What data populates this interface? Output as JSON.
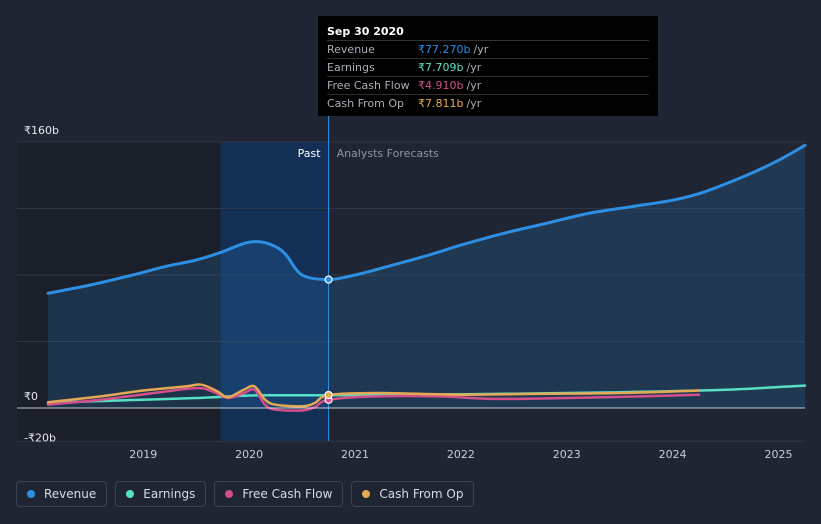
{
  "chart_data": {
    "type": "line",
    "currency_symbol": "₹",
    "y_ticks": [
      {
        "value": 160,
        "label": "₹160b"
      },
      {
        "value": 0,
        "label": "₹0"
      },
      {
        "value": -20,
        "label": "-₹20b"
      }
    ],
    "ylim": [
      -20,
      160
    ],
    "xlim": [
      2018.1,
      2025.25
    ],
    "x_ticks": [
      2019,
      2020,
      2021,
      2022,
      2023,
      2024,
      2025
    ],
    "past_label": "Past",
    "forecast_label": "Analysts Forecasts",
    "past_end": 2020.75,
    "highlight_start": 2019.73,
    "series": [
      {
        "name": "Revenue",
        "color": "#2d8fe3",
        "forecast": true,
        "area": true,
        "x": [
          2018.1,
          2018.5,
          2018.9,
          2019.2,
          2019.5,
          2019.75,
          2019.95,
          2020.1,
          2020.25,
          2020.35,
          2020.5,
          2020.75,
          2021.0,
          2021.3,
          2021.7,
          2022.0,
          2022.4,
          2022.8,
          2023.2,
          2023.6,
          2024.0,
          2024.3,
          2024.7,
          2025.0,
          2025.25
        ],
        "y": [
          69,
          74,
          80,
          85,
          89,
          94,
          99,
          100,
          97,
          92,
          80,
          77.27,
          80,
          85,
          92,
          98,
          105,
          111,
          117,
          121,
          125,
          130,
          140,
          149,
          158
        ]
      },
      {
        "name": "Earnings",
        "color": "#58e0c5",
        "forecast": true,
        "area": false,
        "x": [
          2018.1,
          2018.5,
          2019.0,
          2019.5,
          2020.0,
          2020.3,
          2020.75,
          2021.5,
          2022.5,
          2023.5,
          2024.5,
          2025.25
        ],
        "y": [
          3,
          4,
          5,
          6,
          7.5,
          7.7,
          7.709,
          8,
          8.6,
          9.5,
          11,
          13.5
        ]
      },
      {
        "name": "Free Cash Flow",
        "color": "#d24f8a",
        "forecast": true,
        "area": false,
        "x": [
          2018.1,
          2018.6,
          2019.1,
          2019.5,
          2019.65,
          2019.8,
          2019.95,
          2020.05,
          2020.15,
          2020.25,
          2020.5,
          2020.62,
          2020.75,
          2021.2,
          2021.8,
          2022.3,
          2023.0,
          2023.7,
          2024.25
        ],
        "y": [
          2,
          5,
          9,
          12,
          10,
          6,
          9,
          11,
          2,
          -1,
          -1.5,
          0.5,
          4.91,
          7,
          7,
          5.5,
          6,
          7,
          8
        ]
      },
      {
        "name": "Cash From Op",
        "color": "#e5a954",
        "forecast": true,
        "area": false,
        "x": [
          2018.1,
          2018.6,
          2019.0,
          2019.4,
          2019.55,
          2019.7,
          2019.8,
          2019.95,
          2020.05,
          2020.15,
          2020.25,
          2020.5,
          2020.62,
          2020.75,
          2021.2,
          2022.0,
          2022.7,
          2023.5,
          2024.25
        ],
        "y": [
          3.5,
          7,
          10.5,
          13,
          14,
          10,
          6.5,
          11,
          13,
          5,
          2,
          1,
          3,
          7.811,
          9,
          8,
          8.5,
          9,
          10.5
        ]
      }
    ],
    "tooltip": {
      "date": "Sep 30 2020",
      "unit": "/yr",
      "rows": [
        {
          "name": "Revenue",
          "value": "₹77.270b",
          "color": "#2d8fe3"
        },
        {
          "name": "Earnings",
          "value": "₹7.709b",
          "color": "#58e0c5"
        },
        {
          "name": "Free Cash Flow",
          "value": "₹4.910b",
          "color": "#d24f8a"
        },
        {
          "name": "Cash From Op",
          "value": "₹7.811b",
          "color": "#e5a954"
        }
      ]
    }
  },
  "legend": [
    {
      "name": "Revenue",
      "color": "#2d8fe3"
    },
    {
      "name": "Earnings",
      "color": "#58e0c5"
    },
    {
      "name": "Free Cash Flow",
      "color": "#d24f8a"
    },
    {
      "name": "Cash From Op",
      "color": "#e5a954"
    }
  ]
}
